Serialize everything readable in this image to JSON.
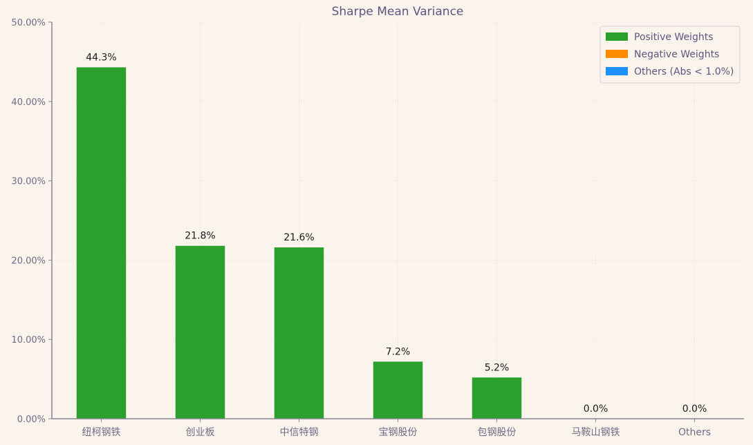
{
  "chart_data": {
    "type": "bar",
    "title": "Sharpe Mean Variance",
    "xlabel": "",
    "ylabel": "",
    "categories": [
      "纽柯钢铁",
      "创业板",
      "中信特钢",
      "宝钢股份",
      "包钢股份",
      "马鞍山钢铁",
      "Others"
    ],
    "values": [
      44.3,
      21.8,
      21.6,
      7.2,
      5.2,
      0.0,
      0.0
    ],
    "value_labels": [
      "44.3%",
      "21.8%",
      "21.6%",
      "7.2%",
      "5.2%",
      "0.0%",
      "0.0%"
    ],
    "ylim": [
      0,
      50
    ],
    "yticks": [
      0,
      10,
      20,
      30,
      40,
      50
    ],
    "ytick_labels": [
      "0.00%",
      "10.00%",
      "20.00%",
      "30.00%",
      "40.00%",
      "50.00%"
    ],
    "grid": true,
    "legend_position": "top-right",
    "legend": [
      {
        "label": "Positive Weights",
        "color": "#2ca02c"
      },
      {
        "label": "Negative Weights",
        "color": "#ff8c00"
      },
      {
        "label": "Others (Abs < 1.0%)",
        "color": "#1e90ff"
      }
    ],
    "bar_color": "#2ca02c"
  }
}
